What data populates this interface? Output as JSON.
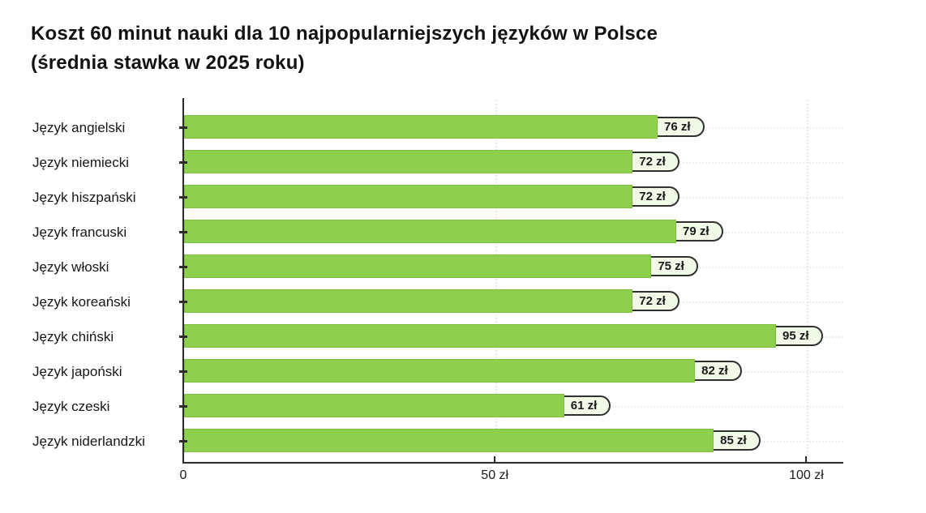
{
  "chart_data": {
    "type": "bar",
    "orientation": "horizontal",
    "title": "Koszt 60 minut nauki dla 10 najpopularniejszych języków w Polsce (średnia stawka w 2025 roku)",
    "title_lines": [
      "Koszt 60 minut nauki dla 10 najpopularniejszych języków w Polsce",
      "(średnia stawka w 2025 roku)"
    ],
    "categories": [
      "Język angielski",
      "Język niemiecki",
      "Język hiszpański",
      "Język francuski",
      "Język włoski",
      "Język koreański",
      "Język chiński",
      "Język japoński",
      "Język czeski",
      "Język niderlandzki"
    ],
    "values": [
      76,
      72,
      72,
      79,
      75,
      72,
      95,
      82,
      61,
      85
    ],
    "value_labels": [
      "76 zł",
      "72 zł",
      "72 zł",
      "79 zł",
      "75 zł",
      "72 zł",
      "95 zł",
      "82 zł",
      "61 zł",
      "85 zł"
    ],
    "unit": "zł",
    "ylabel": "",
    "xlabel": "",
    "x_axis": {
      "range": [
        0,
        105.8
      ],
      "ticks": [
        {
          "value": 0,
          "label": "0"
        },
        {
          "value": 50,
          "label": "50 zł"
        },
        {
          "value": 100,
          "label": "100 zł"
        }
      ]
    },
    "grid": {
      "vertical_gridlines_at": [
        50,
        100
      ],
      "horizontal_gridlines": "one per category row",
      "style": "dotted light gray"
    },
    "legend": "none",
    "colors": {
      "bar_fill": "#8ed04e",
      "bar_border": "#7cbf41",
      "pill_fill": "#f1fae7",
      "pill_border": "#303030",
      "text": "#161616",
      "axis": "#2b2b2b",
      "gridline": "#e9e9e9",
      "background": "#ffffff"
    }
  }
}
